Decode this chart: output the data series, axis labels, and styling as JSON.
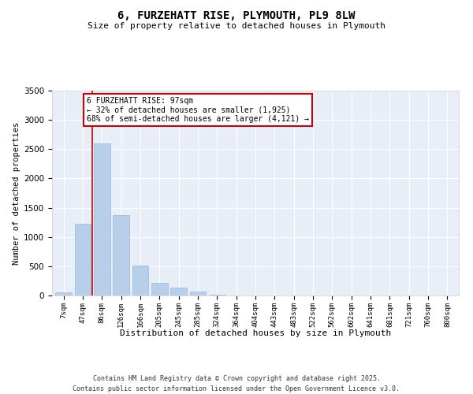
{
  "title": "6, FURZEHATT RISE, PLYMOUTH, PL9 8LW",
  "subtitle": "Size of property relative to detached houses in Plymouth",
  "xlabel": "Distribution of detached houses by size in Plymouth",
  "ylabel": "Number of detached properties",
  "categories": [
    "7sqm",
    "47sqm",
    "86sqm",
    "126sqm",
    "166sqm",
    "205sqm",
    "245sqm",
    "285sqm",
    "324sqm",
    "364sqm",
    "404sqm",
    "443sqm",
    "483sqm",
    "522sqm",
    "562sqm",
    "602sqm",
    "641sqm",
    "681sqm",
    "721sqm",
    "760sqm",
    "800sqm"
  ],
  "values": [
    50,
    1230,
    2600,
    1370,
    510,
    220,
    140,
    65,
    10,
    0,
    0,
    0,
    0,
    0,
    0,
    0,
    0,
    0,
    0,
    0,
    0
  ],
  "bar_color": "#b8cfea",
  "bar_edge_color": "#9ab8d8",
  "vline_color": "#cc0000",
  "vline_x": 1.5,
  "annotation_line1": "6 FURZEHATT RISE: 97sqm",
  "annotation_line2": "← 32% of detached houses are smaller (1,925)",
  "annotation_line3": "68% of semi-detached houses are larger (4,121) →",
  "annotation_box_edgecolor": "#cc0000",
  "ylim": [
    0,
    3500
  ],
  "yticks": [
    0,
    500,
    1000,
    1500,
    2000,
    2500,
    3000,
    3500
  ],
  "bg_color": "#e8eef8",
  "grid_color": "#ffffff",
  "footer_line1": "Contains HM Land Registry data © Crown copyright and database right 2025.",
  "footer_line2": "Contains public sector information licensed under the Open Government Licence v3.0."
}
